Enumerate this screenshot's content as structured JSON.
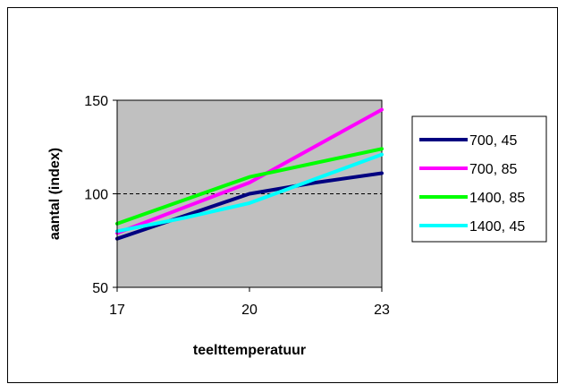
{
  "chart_data": {
    "type": "line",
    "title": "",
    "xlabel": "teelttemperatuur",
    "ylabel": "aantal (index)",
    "x": [
      17,
      20,
      23
    ],
    "x_ticks": [
      "17",
      "20",
      "23"
    ],
    "y_ticks": [
      "50",
      "100",
      "150"
    ],
    "xlim": [
      17,
      23
    ],
    "ylim": [
      50,
      150
    ],
    "reference_line": 100,
    "grid": false,
    "plot_background": "#c0c0c0",
    "legend_position": "right",
    "series": [
      {
        "name": "700, 45",
        "color": "#000080",
        "points": [
          [
            17,
            76
          ],
          [
            20,
            100
          ],
          [
            21.5,
            106
          ],
          [
            23,
            111
          ]
        ]
      },
      {
        "name": "700, 85",
        "color": "#ff00ff",
        "points": [
          [
            17,
            79
          ],
          [
            20,
            106
          ],
          [
            23,
            145
          ]
        ]
      },
      {
        "name": "1400, 85",
        "color": "#00ff00",
        "points": [
          [
            17,
            84
          ],
          [
            20,
            109
          ],
          [
            23,
            124
          ]
        ]
      },
      {
        "name": "1400, 45",
        "color": "#00ffff",
        "points": [
          [
            17,
            80
          ],
          [
            18.5,
            87
          ],
          [
            20,
            95
          ],
          [
            21.5,
            108
          ],
          [
            23,
            121
          ]
        ]
      }
    ]
  }
}
